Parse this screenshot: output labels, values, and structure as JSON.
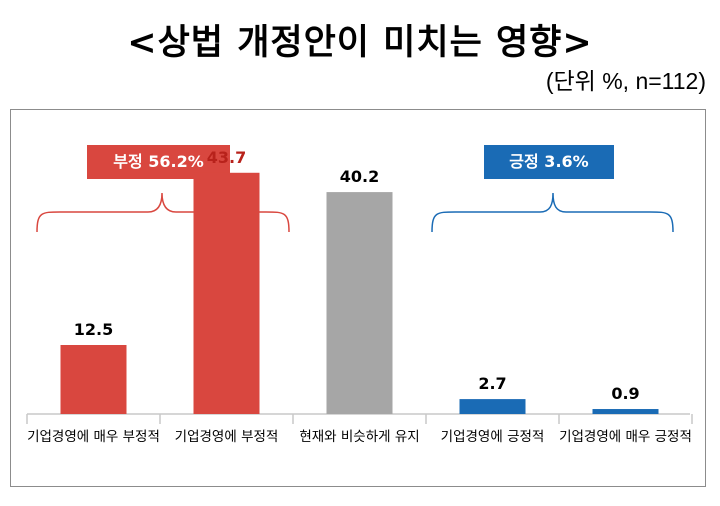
{
  "title": "<상법 개정안이 미치는 영향>",
  "unit_note": "(단위 %, n=112)",
  "groups": {
    "negative_label": "부정 56.2%",
    "positive_label": "긍정 3.6%"
  },
  "colors": {
    "negative": "#d9473f",
    "neutral": "#a6a6a6",
    "positive": "#1a6bb5",
    "negative_value_text": "#b8221b"
  },
  "chart_data": {
    "type": "bar",
    "categories": [
      "기업경영에 매우 부정적",
      "기업경영에 부정적",
      "현재와 비슷하게 유지",
      "기업경영에 긍정적",
      "기업경영에 매우 긍정적"
    ],
    "values": [
      12.5,
      43.7,
      40.2,
      2.7,
      0.9
    ],
    "value_labels": [
      "12.5",
      "43.7",
      "40.2",
      "2.7",
      "0.9"
    ],
    "ylim": [
      0,
      50
    ],
    "grid": false,
    "legend": "none"
  }
}
